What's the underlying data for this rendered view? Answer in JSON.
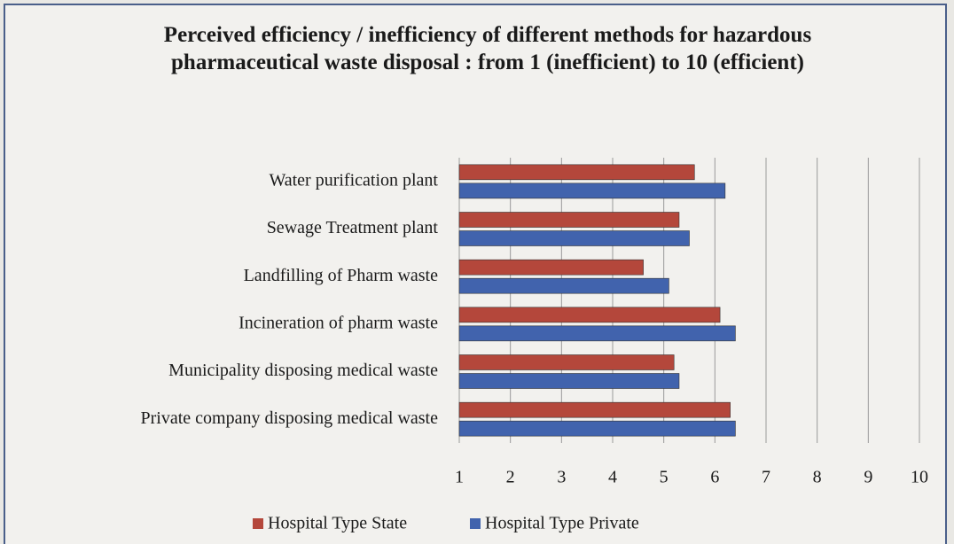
{
  "chart_data": {
    "type": "hbar",
    "title": "Perceived efficiency / inefficiency of different methods for hazardous pharmaceutical waste disposal : from 1 (inefficient) to 10 (efficient)",
    "categories": [
      "Water purification plant",
      "Sewage Treatment plant",
      "Landfilling of Pharm waste",
      "Incineration of pharm waste",
      "Municipality disposing medical waste",
      "Private company disposing medical waste"
    ],
    "series": [
      {
        "name": "Hospital Type State",
        "color": "#b4473b",
        "values": [
          5.6,
          5.3,
          4.6,
          6.1,
          5.2,
          6.3
        ]
      },
      {
        "name": "Hospital Type Private",
        "color": "#4163ad",
        "values": [
          6.2,
          5.5,
          5.1,
          6.4,
          5.3,
          6.4
        ]
      }
    ],
    "xlim": [
      1,
      10
    ],
    "xticks": [
      1,
      2,
      3,
      4,
      5,
      6,
      7,
      8,
      9,
      10
    ],
    "grid": true,
    "legend": "bottom"
  }
}
